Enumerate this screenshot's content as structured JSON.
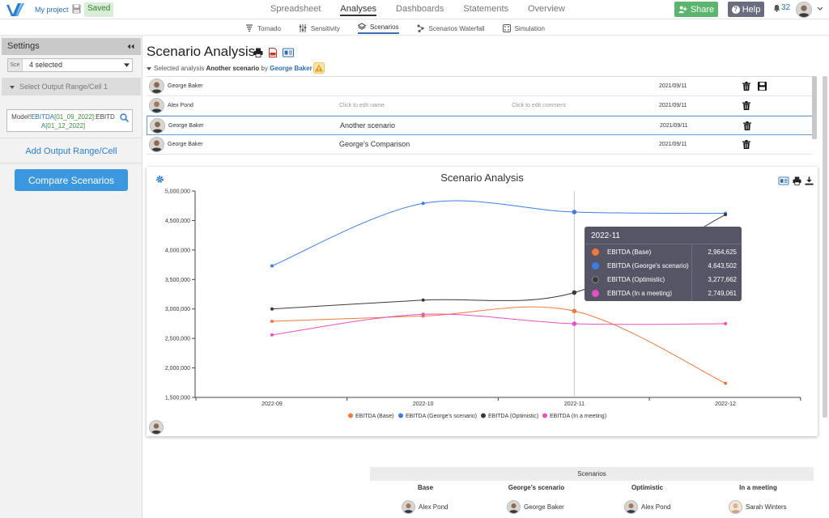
{
  "topbar": {
    "project_name": "My project",
    "saved_label": "Saved",
    "nav": [
      "Spreadsheet",
      "Analyses",
      "Dashboards",
      "Statements",
      "Overview"
    ],
    "active_nav": "Analyses",
    "share_label": "Share",
    "help_label": "Help",
    "notification_count": "32"
  },
  "subnav": [
    {
      "label": "Tornado",
      "icon": "tornado-icon"
    },
    {
      "label": "Sensitivity",
      "icon": "sliders-icon"
    },
    {
      "label": "Scenarios",
      "icon": "layers-icon"
    },
    {
      "label": "Scenarios Waterfall",
      "icon": "waterfall-icon"
    },
    {
      "label": "Simulation",
      "icon": "dice-icon"
    }
  ],
  "active_subnav": "Scenarios",
  "sidebar": {
    "settings_label": "Settings",
    "select_prefix": "Sce",
    "select_value": "4 selected",
    "output_range_label": "Select Output Range/Cell 1",
    "formula": {
      "p1": "Model!",
      "p2": "EBITDA",
      "p3": "[01_09_2022]",
      "p4": ":EBITD",
      "p5": "A",
      "p6": "[01_12_2022]"
    },
    "add_output_label": "Add Output Range/Cell",
    "compare_label": "Compare Scenarios"
  },
  "page": {
    "title": "Scenario Analysis",
    "selected_prefix": "Selected analysis",
    "selected_name": "Another scenario",
    "by": "by",
    "author": "George Baker"
  },
  "scenarios": [
    {
      "owner": "George Baker",
      "name": "",
      "comment": "",
      "date": "2021/09/11",
      "save": true
    },
    {
      "owner": "Alex Pond",
      "name": "Click to edit name",
      "comment": "Click to edit comment",
      "date": "2021/09/11",
      "save": false
    },
    {
      "owner": "George Baker",
      "name": "Another scenario",
      "comment": "",
      "date": "2021/09/11",
      "save": false,
      "selected": true
    },
    {
      "owner": "George Baker",
      "name": "George's Comparison",
      "comment": "",
      "date": "2021/09/11",
      "save": false
    }
  ],
  "chart_data": {
    "type": "line",
    "title": "Scenario Analysis",
    "categories": [
      "2022-09",
      "2022-10",
      "2022-11",
      "2022-12"
    ],
    "ylim": [
      1500000,
      5000000
    ],
    "yticks": [
      "1,500,000",
      "2,000,000",
      "2,500,000",
      "3,000,000",
      "3,500,000",
      "4,000,000",
      "4,500,000",
      "5,000,000"
    ],
    "ytick_values": [
      1500000,
      2000000,
      2500000,
      3000000,
      3500000,
      4000000,
      4500000,
      5000000
    ],
    "legend_position": "bottom",
    "series": [
      {
        "name": "EBITDA (Base)",
        "color": "#f0793a",
        "values": [
          2790000,
          2880000,
          2964625,
          1740000
        ]
      },
      {
        "name": "EBITDA (George's scenario)",
        "color": "#3d7ee6",
        "values": [
          3730000,
          4790000,
          4643502,
          4620000
        ]
      },
      {
        "name": "EBITDA (Optimistic)",
        "color": "#3a3a3a",
        "values": [
          3000000,
          3150000,
          3277662,
          4600000
        ]
      },
      {
        "name": "EBITDA (In a meeting)",
        "color": "#e84fc4",
        "values": [
          2560000,
          2910000,
          2749061,
          2750000
        ]
      }
    ],
    "tooltip": {
      "category": "2022-11",
      "rows": [
        {
          "name": "EBITDA (Base)",
          "value": "2,964,625",
          "color": "#f0793a"
        },
        {
          "name": "EBITDA (George's scenario)",
          "value": "4,643,502",
          "color": "#3d7ee6"
        },
        {
          "name": "EBITDA (Optimistic)",
          "value": "3,277,662",
          "color": "#3a3a3a"
        },
        {
          "name": "EBITDA (In a meeting)",
          "value": "2,749,061",
          "color": "#e84fc4"
        }
      ]
    }
  },
  "bottom": {
    "header": "Scenarios",
    "columns": [
      "Base",
      "George's scenario",
      "Optimistic",
      "In a meeting"
    ],
    "people": [
      "Alex Pond",
      "George Baker",
      "Alex Pond",
      "Sarah Winters"
    ]
  }
}
